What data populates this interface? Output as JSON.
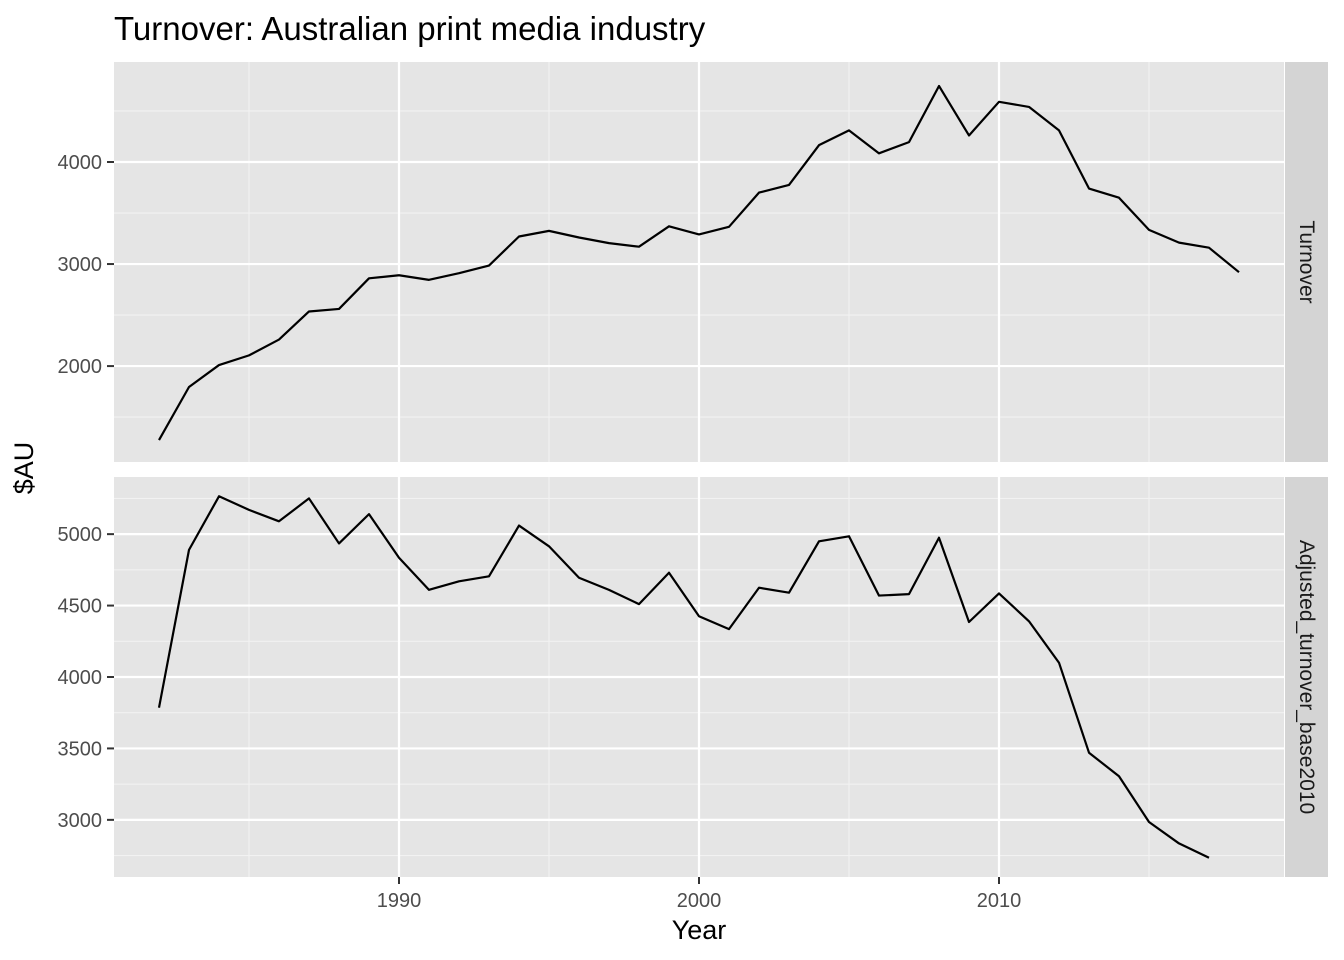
{
  "chart_data": {
    "type": "line",
    "title": "Turnover: Australian print media industry",
    "xlabel": "Year",
    "ylabel": "$AU",
    "grid": true,
    "xlim": [
      1980.5,
      2019.5
    ],
    "x_ticks": [
      1990,
      2000,
      2010
    ],
    "x_tick_labels": [
      "1990",
      "2000",
      "2010"
    ],
    "facets": [
      {
        "name": "Turnover",
        "ylim": [
          1060,
          4980
        ],
        "y_ticks": [
          2000,
          3000,
          4000
        ],
        "y_tick_labels": [
          "2000",
          "3000",
          "4000"
        ],
        "y_minor": [
          1500,
          2500,
          3500,
          4500
        ],
        "series": [
          {
            "x": [
              1982,
              1983,
              1984,
              1985,
              1986,
              1987,
              1988,
              1989,
              1990,
              1991,
              1992,
              1993,
              1994,
              1995,
              1996,
              1997,
              1998,
              1999,
              2000,
              2001,
              2002,
              2003,
              2004,
              2005,
              2006,
              2007,
              2008,
              2009,
              2010,
              2011,
              2012,
              2013,
              2014,
              2015,
              2016,
              2017,
              2018
            ],
            "y": [
              1275,
              1795,
              2010,
              2105,
              2260,
              2535,
              2560,
              2860,
              2890,
              2845,
              2910,
              2985,
              3270,
              3325,
              3260,
              3205,
              3170,
              3370,
              3290,
              3365,
              3700,
              3775,
              4165,
              4310,
              4085,
              4195,
              4745,
              4260,
              4590,
              4540,
              4310,
              3740,
              3650,
              3335,
              3210,
              3160,
              2920
            ]
          }
        ]
      },
      {
        "name": "Adjusted_turnover_base2010",
        "ylim": [
          2600,
          5400
        ],
        "y_ticks": [
          3000,
          3500,
          4000,
          4500,
          5000
        ],
        "y_tick_labels": [
          "3000",
          "3500",
          "4000",
          "4500",
          "5000"
        ],
        "y_minor": [
          2750,
          3250,
          3750,
          4250,
          4750,
          5250
        ],
        "series": [
          {
            "x": [
              1982,
              1983,
              1984,
              1985,
              1986,
              1987,
              1988,
              1989,
              1990,
              1991,
              1992,
              1993,
              1994,
              1995,
              1996,
              1997,
              1998,
              1999,
              2000,
              2001,
              2002,
              2003,
              2004,
              2005,
              2006,
              2007,
              2008,
              2009,
              2010,
              2011,
              2012,
              2013,
              2014,
              2015,
              2016,
              2017
            ],
            "y": [
              3785,
              4890,
              5265,
              5170,
              5090,
              5250,
              4935,
              5140,
              4835,
              4610,
              4670,
              4705,
              5060,
              4915,
              4695,
              4610,
              4510,
              4730,
              4425,
              4335,
              4625,
              4590,
              4950,
              4985,
              4570,
              4580,
              4975,
              4385,
              4585,
              4390,
              4100,
              3470,
              3305,
              2985,
              2835,
              2735
            ]
          }
        ]
      }
    ]
  }
}
